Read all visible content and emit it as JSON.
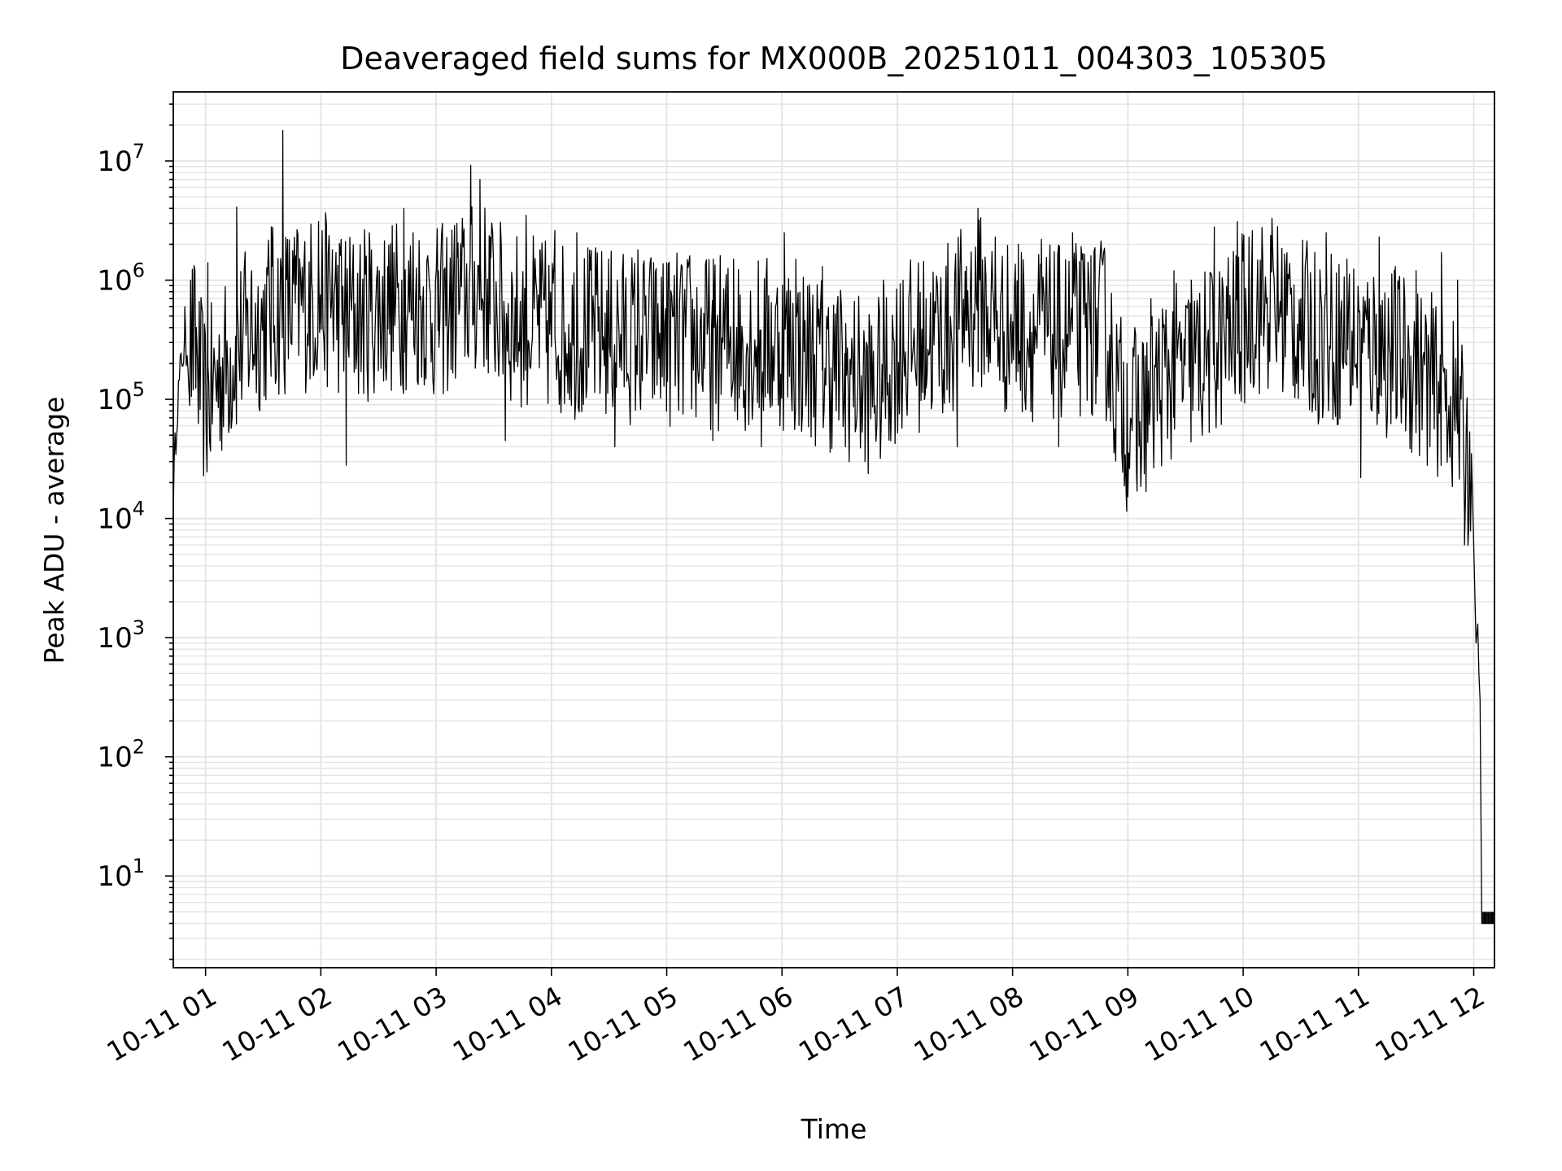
{
  "chart_data": {
    "type": "line",
    "title": "Deaveraged field sums for MX000B_20251011_004303_105305",
    "xlabel": "Time",
    "ylabel": "Peak ADU - average",
    "yscale": "log",
    "xlim_hours": [
      0.72,
      12.18
    ],
    "ylim": [
      1.7,
      38000000
    ],
    "grid": true,
    "x_ticks": [
      {
        "hour": 1,
        "label": "10-11 01"
      },
      {
        "hour": 2,
        "label": "10-11 02"
      },
      {
        "hour": 3,
        "label": "10-11 03"
      },
      {
        "hour": 4,
        "label": "10-11 04"
      },
      {
        "hour": 5,
        "label": "10-11 05"
      },
      {
        "hour": 6,
        "label": "10-11 06"
      },
      {
        "hour": 7,
        "label": "10-11 07"
      },
      {
        "hour": 8,
        "label": "10-11 08"
      },
      {
        "hour": 9,
        "label": "10-11 09"
      },
      {
        "hour": 10,
        "label": "10-11 10"
      },
      {
        "hour": 11,
        "label": "10-11 11"
      },
      {
        "hour": 12,
        "label": "10-11 12"
      }
    ],
    "y_ticks": [
      {
        "value": 10,
        "base": "10",
        "exp": "1"
      },
      {
        "value": 100,
        "base": "10",
        "exp": "2"
      },
      {
        "value": 1000,
        "base": "10",
        "exp": "3"
      },
      {
        "value": 10000,
        "base": "10",
        "exp": "4"
      },
      {
        "value": 100000,
        "base": "10",
        "exp": "5"
      },
      {
        "value": 1000000,
        "base": "10",
        "exp": "6"
      },
      {
        "value": 10000000,
        "base": "10",
        "exp": "7"
      }
    ],
    "series": [
      {
        "name": "Peak ADU - average",
        "color": "#000000",
        "baseline": [
          [
            0.72,
            15000
          ],
          [
            0.75,
            80000
          ],
          [
            0.8,
            250000
          ],
          [
            0.9,
            300000
          ],
          [
            0.95,
            150000
          ],
          [
            1.0,
            90000
          ],
          [
            1.1,
            150000
          ],
          [
            1.3,
            300000
          ],
          [
            1.6,
            550000
          ],
          [
            1.8,
            600000
          ],
          [
            2.0,
            700000
          ],
          [
            2.3,
            500000
          ],
          [
            2.6,
            600000
          ],
          [
            2.9,
            650000
          ],
          [
            3.0,
            500000
          ],
          [
            3.2,
            700000
          ],
          [
            3.4,
            900000
          ],
          [
            3.6,
            500000
          ],
          [
            4.0,
            400000
          ],
          [
            4.5,
            350000
          ],
          [
            5.0,
            320000
          ],
          [
            5.5,
            300000
          ],
          [
            6.0,
            300000
          ],
          [
            6.5,
            180000
          ],
          [
            6.8,
            120000
          ],
          [
            7.0,
            250000
          ],
          [
            7.4,
            350000
          ],
          [
            7.7,
            700000
          ],
          [
            7.9,
            400000
          ],
          [
            8.3,
            350000
          ],
          [
            8.8,
            400000
          ],
          [
            8.92,
            100000
          ],
          [
            9.1,
            70000
          ],
          [
            9.3,
            150000
          ],
          [
            9.6,
            200000
          ],
          [
            9.9,
            350000
          ],
          [
            10.1,
            600000
          ],
          [
            10.3,
            600000
          ],
          [
            10.6,
            350000
          ],
          [
            11.0,
            300000
          ],
          [
            11.3,
            250000
          ],
          [
            11.6,
            150000
          ],
          [
            11.8,
            100000
          ],
          [
            11.9,
            50000
          ],
          [
            11.98,
            25000
          ]
        ],
        "spikes": [
          [
            0.82,
            600000
          ],
          [
            0.92,
            400000
          ],
          [
            1.02,
            1400000
          ],
          [
            1.12,
            300000
          ],
          [
            1.27,
            4100000
          ],
          [
            1.4,
            1200000
          ],
          [
            1.57,
            2800000
          ],
          [
            1.67,
            18000000
          ],
          [
            1.78,
            1600000
          ],
          [
            1.98,
            3100000
          ],
          [
            2.1,
            1800000
          ],
          [
            2.22,
            28000
          ],
          [
            2.42,
            2500000
          ],
          [
            2.58,
            1300000
          ],
          [
            2.72,
            4000000
          ],
          [
            2.8,
            2500000
          ],
          [
            3.02,
            1200000
          ],
          [
            3.18,
            3000000
          ],
          [
            3.3,
            9200000
          ],
          [
            3.38,
            7000000
          ],
          [
            3.47,
            2300000
          ],
          [
            3.6,
            45000
          ],
          [
            3.78,
            3500000
          ],
          [
            3.9,
            1800000
          ],
          [
            4.03,
            2600000
          ],
          [
            4.22,
            2500000
          ],
          [
            4.38,
            1600000
          ],
          [
            4.55,
            40000
          ],
          [
            4.75,
            1800000
          ],
          [
            5.0,
            1400000
          ],
          [
            5.2,
            1600000
          ],
          [
            5.4,
            45000
          ],
          [
            5.58,
            1500000
          ],
          [
            5.82,
            40000
          ],
          [
            6.02,
            2500000
          ],
          [
            6.12,
            1500000
          ],
          [
            6.35,
            1300000
          ],
          [
            6.55,
            40000
          ],
          [
            6.72,
            30000
          ],
          [
            6.88,
            1000000
          ],
          [
            7.05,
            1000000
          ],
          [
            7.25,
            700000
          ],
          [
            7.52,
            40000
          ],
          [
            7.6,
            1300000
          ],
          [
            7.7,
            4000000
          ],
          [
            7.85,
            2300000
          ],
          [
            8.05,
            2000000
          ],
          [
            8.25,
            2200000
          ],
          [
            8.4,
            40000
          ],
          [
            8.52,
            2500000
          ],
          [
            8.68,
            1600000
          ],
          [
            8.8,
            1600000
          ],
          [
            8.99,
            11500
          ],
          [
            9.08,
            17000
          ],
          [
            9.2,
            700000
          ],
          [
            9.4,
            1200000
          ],
          [
            9.55,
            1000000
          ],
          [
            9.75,
            2800000
          ],
          [
            9.95,
            3100000
          ],
          [
            10.08,
            2600000
          ],
          [
            10.25,
            3300000
          ],
          [
            10.38,
            1700000
          ],
          [
            10.5,
            700000
          ],
          [
            10.72,
            2500000
          ],
          [
            10.9,
            1500000
          ],
          [
            11.02,
            22000
          ],
          [
            11.18,
            2300000
          ],
          [
            11.32,
            1300000
          ],
          [
            11.5,
            1200000
          ],
          [
            11.62,
            40000
          ],
          [
            11.72,
            1700000
          ],
          [
            11.86,
            1000000
          ],
          [
            11.92,
            6000
          ]
        ],
        "tail": [
          [
            11.98,
            35000
          ],
          [
            12.0,
            6000
          ],
          [
            12.02,
            900
          ],
          [
            12.035,
            1300
          ],
          [
            12.045,
            500
          ],
          [
            12.055,
            300
          ],
          [
            12.07,
            4
          ],
          [
            12.18,
            4
          ]
        ]
      }
    ]
  }
}
